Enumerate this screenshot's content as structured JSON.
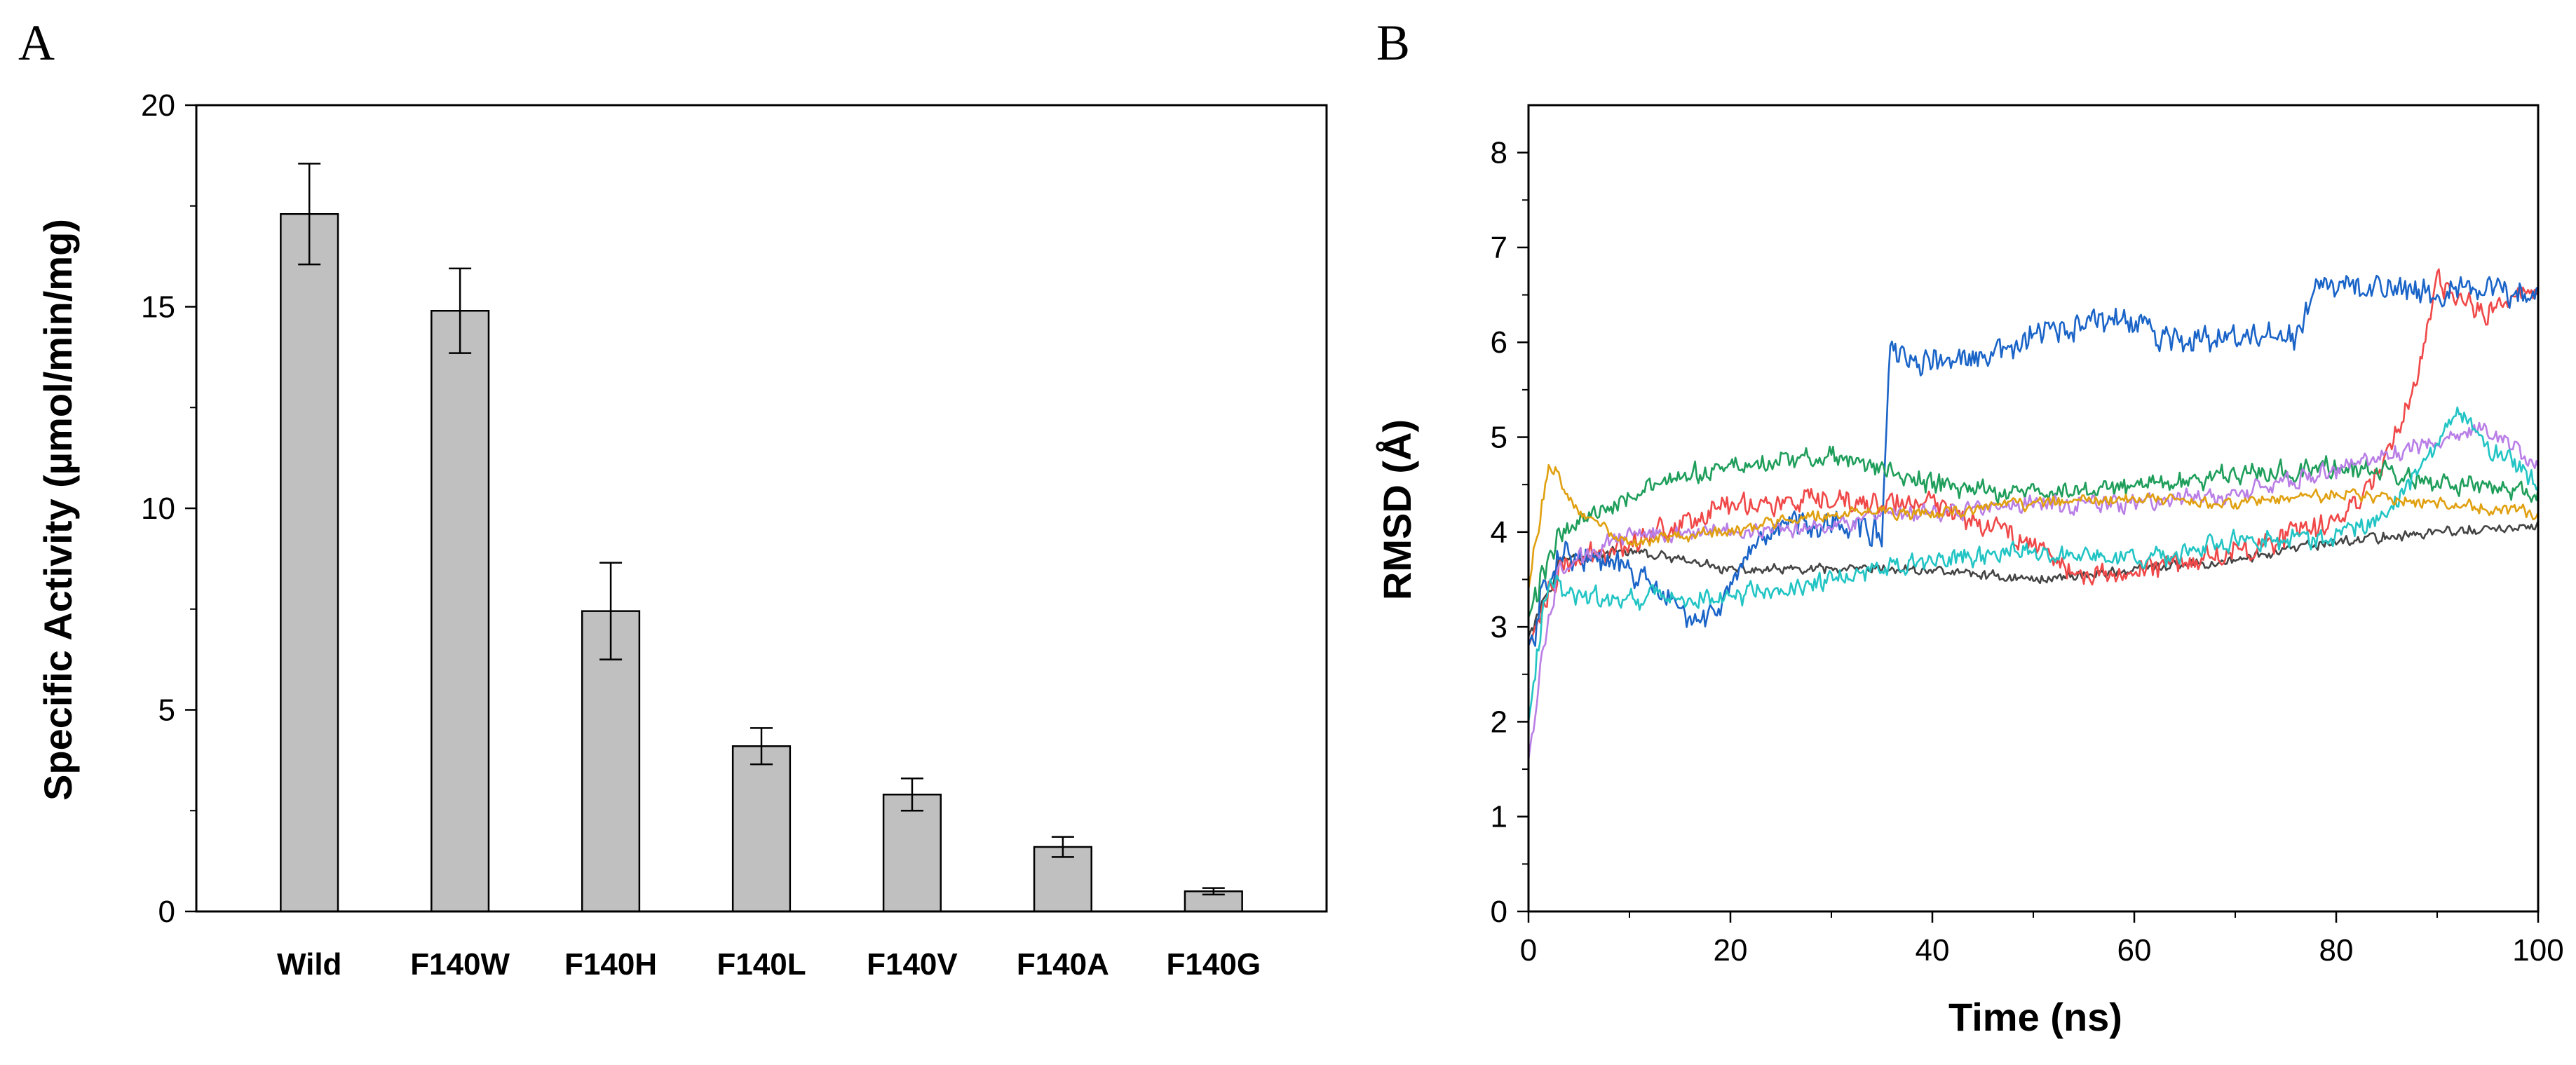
{
  "chart_data": [
    {
      "panel": "A",
      "type": "bar",
      "title": "",
      "xlabel": "",
      "ylabel": "Specific Activity (µmol/min/mg)",
      "ylim": [
        0,
        20
      ],
      "yticks": [
        0,
        5,
        10,
        15,
        20
      ],
      "categories": [
        "Wild",
        "F140W",
        "F140H",
        "F140L",
        "F140V",
        "F140A",
        "F140G"
      ],
      "values": [
        17.3,
        14.9,
        7.45,
        4.1,
        2.9,
        1.6,
        0.5
      ],
      "errors": [
        1.25,
        1.05,
        1.2,
        0.45,
        0.4,
        0.25,
        0.08
      ],
      "bar_color": "#c0c0c0",
      "grid": false
    },
    {
      "panel": "B",
      "type": "line",
      "title": "",
      "xlabel": "Time (ns)",
      "ylabel": "RMSD (Å)",
      "xlim": [
        0,
        100
      ],
      "ylim": [
        0,
        8.5
      ],
      "xticks": [
        0,
        20,
        40,
        60,
        80,
        100
      ],
      "yticks": [
        0,
        1,
        2,
        3,
        4,
        5,
        6,
        7,
        8
      ],
      "grid": false,
      "series": [
        {
          "name": "black",
          "color": "#444444",
          "noise": 0.06,
          "start": 2.9,
          "x": [
            0,
            3,
            10,
            20,
            30,
            40,
            50,
            60,
            70,
            80,
            90,
            100
          ],
          "y": [
            2.9,
            3.7,
            3.8,
            3.6,
            3.6,
            3.6,
            3.5,
            3.6,
            3.7,
            3.9,
            4.0,
            4.05
          ]
        },
        {
          "name": "red",
          "color": "#f04848",
          "noise": 0.14,
          "start": 2.8,
          "x": [
            0,
            3,
            10,
            20,
            30,
            40,
            50,
            55,
            60,
            70,
            80,
            84,
            88,
            90,
            95,
            100
          ],
          "y": [
            2.8,
            3.6,
            3.9,
            4.3,
            4.3,
            4.3,
            3.9,
            3.5,
            3.6,
            3.8,
            4.1,
            4.6,
            5.6,
            6.6,
            6.3,
            6.6
          ]
        },
        {
          "name": "blue",
          "color": "#1a64c8",
          "noise": 0.16,
          "start": 2.8,
          "x": [
            0,
            3,
            10,
            17,
            25,
            30,
            35,
            35.8,
            37,
            45,
            50,
            58,
            65,
            70,
            76.5,
            77.5,
            85,
            90,
            100
          ],
          "y": [
            2.8,
            3.8,
            3.6,
            3.0,
            4.1,
            4.1,
            4.0,
            5.9,
            5.8,
            5.8,
            6.05,
            6.25,
            6.0,
            6.05,
            6.05,
            6.55,
            6.6,
            6.55,
            6.5
          ]
        },
        {
          "name": "green",
          "color": "#1e9e5a",
          "noise": 0.12,
          "start": 3.1,
          "x": [
            0,
            3,
            10,
            20,
            30,
            40,
            50,
            60,
            70,
            80,
            90,
            100
          ],
          "y": [
            3.1,
            4.0,
            4.4,
            4.7,
            4.8,
            4.5,
            4.4,
            4.5,
            4.6,
            4.7,
            4.5,
            4.4
          ]
        },
        {
          "name": "violet",
          "color": "#b97ee6",
          "noise": 0.1,
          "start": 1.6,
          "x": [
            0,
            1,
            3,
            10,
            20,
            30,
            40,
            50,
            60,
            70,
            80,
            90,
            95,
            100
          ],
          "y": [
            1.6,
            2.4,
            3.6,
            4.0,
            4.0,
            4.1,
            4.2,
            4.3,
            4.3,
            4.4,
            4.65,
            4.95,
            5.1,
            4.7
          ]
        },
        {
          "name": "cyan",
          "color": "#22c4c4",
          "noise": 0.12,
          "start": 2.0,
          "x": [
            0,
            2,
            5,
            10,
            20,
            30,
            40,
            50,
            60,
            70,
            80,
            85,
            90,
            92,
            95,
            100
          ],
          "y": [
            2.0,
            3.5,
            3.3,
            3.3,
            3.3,
            3.5,
            3.7,
            3.8,
            3.7,
            3.9,
            3.95,
            4.2,
            4.9,
            5.3,
            4.9,
            4.5
          ]
        },
        {
          "name": "orange",
          "color": "#e0a010",
          "noise": 0.07,
          "start": 3.4,
          "x": [
            0,
            2,
            5,
            10,
            20,
            30,
            40,
            50,
            60,
            70,
            80,
            90,
            100
          ],
          "y": [
            3.4,
            4.7,
            4.2,
            3.9,
            4.0,
            4.2,
            4.2,
            4.3,
            4.35,
            4.3,
            4.4,
            4.3,
            4.2
          ]
        }
      ]
    }
  ]
}
